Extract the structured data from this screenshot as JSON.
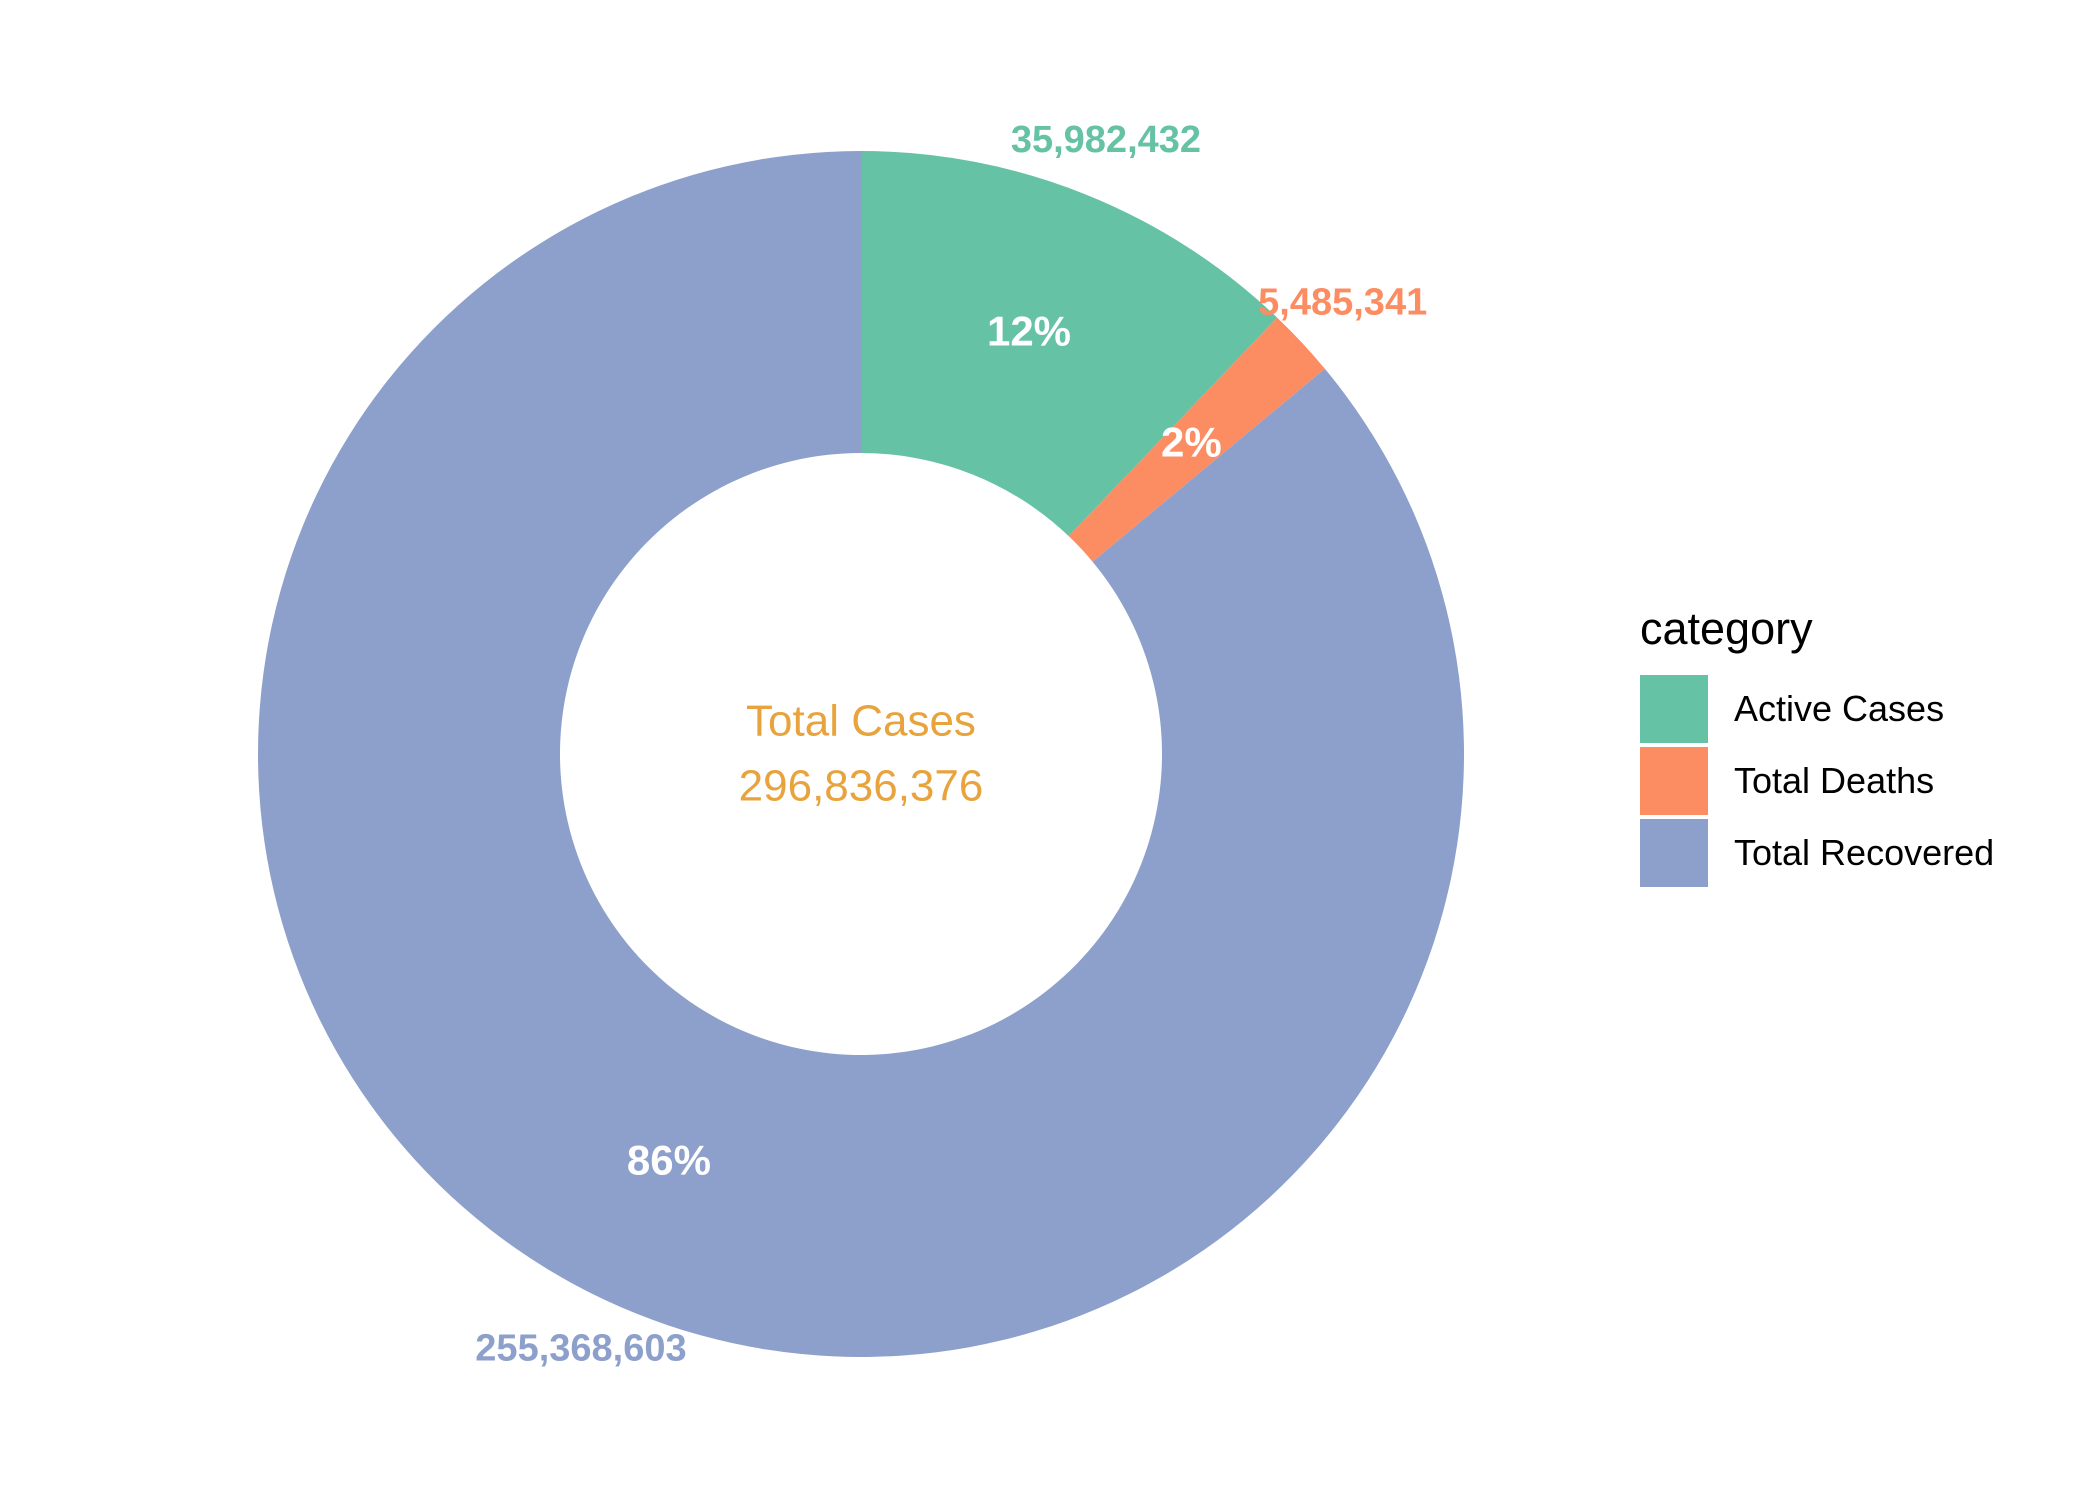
{
  "chart_data": {
    "type": "pie",
    "style": "donut",
    "slices": [
      {
        "category": "Active Cases",
        "value": 35982432,
        "value_label": "35,982,432",
        "percent_label": "12%",
        "color": "#66C2A5"
      },
      {
        "category": "Total Deaths",
        "value": 5485341,
        "value_label": "5,485,341",
        "percent_label": "2%",
        "color": "#FC8D62"
      },
      {
        "category": "Total Recovered",
        "value": 255368603,
        "value_label": "255,368,603",
        "percent_label": "86%",
        "color": "#8DA0CB"
      }
    ],
    "center_text": {
      "title": "Total Cases",
      "value": "296,836,376",
      "color": "#E8A33D"
    },
    "legend": {
      "title": "category",
      "position": "right"
    }
  }
}
